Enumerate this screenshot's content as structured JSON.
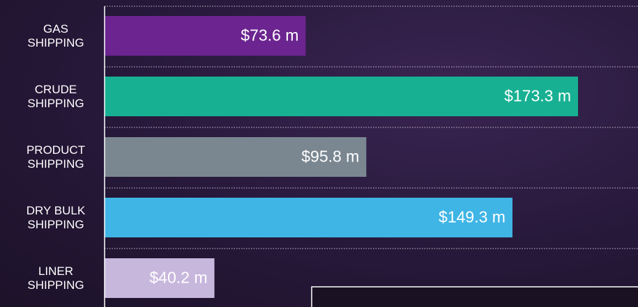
{
  "chart_data": {
    "type": "bar",
    "orientation": "horizontal",
    "categories": [
      "GAS SHIPPING",
      "CRUDE SHIPPING",
      "PRODUCT SHIPPING",
      "DRY BULK SHIPPING",
      "LINER SHIPPING"
    ],
    "values": [
      73.6,
      173.3,
      95.8,
      149.3,
      40.2
    ],
    "value_labels": [
      "$73.6 m",
      "$173.3 m",
      "$95.8 m",
      "$149.3 m",
      "$40.2 m"
    ],
    "colors": [
      "#6c2490",
      "#17b092",
      "#7a8791",
      "#3fb5e5",
      "#c8b7dd"
    ],
    "grid": true
  }
}
